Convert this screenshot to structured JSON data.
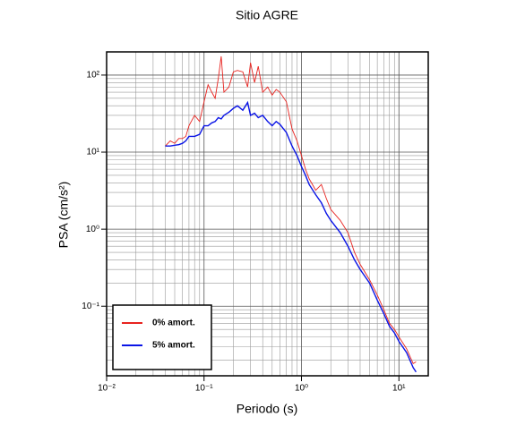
{
  "chart_data": {
    "type": "line",
    "title": "Sitio AGRE",
    "x_label": "Periodo (s)",
    "y_label": "PSA (cm/s²)",
    "x_scale": "log",
    "y_scale": "log",
    "grid": true,
    "legend_position": "lower left",
    "xlim": [
      0.01,
      20
    ],
    "ylim": [
      0.0125,
      200
    ],
    "xticks": [
      {
        "value": 0.01,
        "label": "10⁻²"
      },
      {
        "value": 0.1,
        "label": "10⁻¹"
      },
      {
        "value": 1,
        "label": "10⁰"
      },
      {
        "value": 10,
        "label": "10¹"
      }
    ],
    "yticks": [
      {
        "value": 0.1,
        "label": "10⁻¹"
      },
      {
        "value": 1,
        "label": "10⁰"
      },
      {
        "value": 10,
        "label": "10¹"
      },
      {
        "value": 100,
        "label": "10²"
      }
    ],
    "x_minor_ticks": [
      0.02,
      0.03,
      0.04,
      0.05,
      0.06,
      0.07,
      0.08,
      0.09,
      0.2,
      0.3,
      0.4,
      0.5,
      0.6,
      0.7,
      0.8,
      0.9,
      2,
      3,
      4,
      5,
      6,
      7,
      8,
      9,
      20
    ],
    "y_minor_ticks": [
      0.02,
      0.03,
      0.04,
      0.05,
      0.06,
      0.07,
      0.08,
      0.09,
      0.2,
      0.3,
      0.4,
      0.5,
      0.6,
      0.7,
      0.8,
      0.9,
      2,
      3,
      4,
      5,
      6,
      7,
      8,
      9,
      20,
      30,
      40,
      50,
      60,
      70,
      80,
      90,
      200
    ],
    "x": [
      0.04,
      0.045,
      0.05,
      0.055,
      0.06,
      0.065,
      0.07,
      0.08,
      0.09,
      0.1,
      0.11,
      0.12,
      0.13,
      0.14,
      0.15,
      0.16,
      0.18,
      0.2,
      0.22,
      0.25,
      0.28,
      0.3,
      0.33,
      0.36,
      0.4,
      0.45,
      0.5,
      0.55,
      0.6,
      0.7,
      0.8,
      0.9,
      1.0,
      1.1,
      1.2,
      1.4,
      1.6,
      1.8,
      2,
      2.5,
      3,
      3.5,
      4,
      5,
      6,
      7,
      8,
      9,
      10,
      12,
      14,
      15
    ],
    "series": [
      {
        "name": "0% amort.",
        "color": "#e8231f",
        "values": [
          12,
          14,
          13,
          15,
          15,
          16,
          22,
          30,
          25,
          45,
          75,
          60,
          50,
          90,
          175,
          60,
          70,
          110,
          115,
          110,
          70,
          145,
          80,
          130,
          60,
          70,
          55,
          65,
          60,
          45,
          20,
          14,
          9,
          6,
          4.5,
          3.2,
          3.8,
          2.5,
          1.8,
          1.3,
          0.9,
          0.5,
          0.35,
          0.22,
          0.14,
          0.09,
          0.06,
          0.05,
          0.04,
          0.028,
          0.018,
          0.019
        ]
      },
      {
        "name": "5% amort.",
        "color": "#0a14e6",
        "values": [
          12,
          12,
          12.3,
          12.5,
          13,
          14,
          16,
          16,
          17,
          22,
          22,
          24,
          25,
          28,
          27,
          30,
          33,
          37,
          40,
          35,
          44,
          30,
          32,
          28,
          30,
          25,
          22,
          25,
          23,
          18,
          12,
          9,
          6.5,
          5,
          3.8,
          2.8,
          2.2,
          1.6,
          1.3,
          0.9,
          0.6,
          0.4,
          0.3,
          0.2,
          0.12,
          0.08,
          0.055,
          0.045,
          0.035,
          0.025,
          0.016,
          0.014
        ]
      }
    ]
  }
}
